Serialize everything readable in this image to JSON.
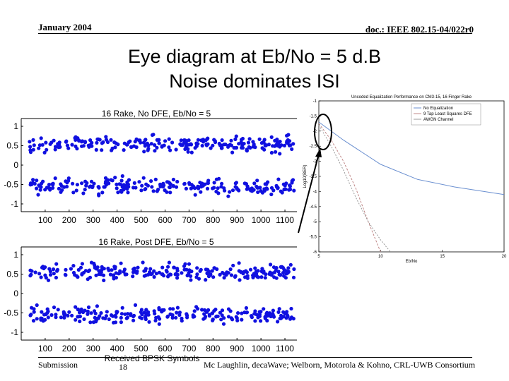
{
  "header": {
    "date": "January 2004",
    "doc": "doc.: IEEE 802.15-04/022r0"
  },
  "title": {
    "line1": "Eye diagram at Eb/No = 5 d.B",
    "line2": "Noise dominates ISI"
  },
  "footer": {
    "submission": "Submission",
    "page": "18",
    "authors": "Mc Laughlin, decaWave; Welborn, Motorola  & Kohno, CRL-UWB Consortium"
  },
  "colors": {
    "scatter": "#1010e0",
    "arrow": "#000000"
  },
  "chart_data": [
    {
      "type": "scatter",
      "title": "16 Rake, No DFE, Eb/No = 5",
      "xlabel": "",
      "ylabel": "",
      "xlim": [
        0,
        1150
      ],
      "ylim": [
        -1.2,
        1.2
      ],
      "xticks": [
        100,
        200,
        300,
        400,
        500,
        600,
        700,
        800,
        900,
        1000,
        1100
      ],
      "yticks": [
        1,
        0.5,
        0,
        -0.5,
        -1
      ],
      "clusters": [
        0.55,
        -0.55
      ],
      "spread": 0.2,
      "grid": false
    },
    {
      "type": "scatter",
      "title": "16 Rake, Post DFE, Eb/No = 5",
      "xlabel": "Received BPSK Symbols",
      "ylabel": "",
      "xlim": [
        0,
        1150
      ],
      "ylim": [
        -1.2,
        1.2
      ],
      "xticks": [
        100,
        200,
        300,
        400,
        500,
        600,
        700,
        800,
        900,
        1000,
        1100
      ],
      "yticks": [
        1,
        0.5,
        0,
        -0.5,
        -1
      ],
      "clusters": [
        0.55,
        -0.55
      ],
      "spread": 0.2,
      "grid": false
    },
    {
      "type": "line",
      "title": "Uncoded Equalization Performance on CM3-15, 16 Finger Rake",
      "xlabel": "Eb/No",
      "ylabel": "Log10(BER)",
      "xlim": [
        5,
        20
      ],
      "ylim": [
        -6,
        -1
      ],
      "xticks": [
        5,
        10,
        15,
        20
      ],
      "yticks": [
        -1,
        -1.5,
        -2,
        -2.5,
        -3,
        -3.5,
        -4,
        -4.5,
        -5,
        -5.5,
        -6
      ],
      "legend_position": "top-right",
      "series": [
        {
          "name": "No Equalization",
          "x": [
            5,
            7,
            10,
            13,
            16,
            20
          ],
          "y": [
            -1.7,
            -2.3,
            -3.1,
            -3.6,
            -3.85,
            -4.1
          ],
          "color": "#6a8fd0"
        },
        {
          "name": "9 Tap Least Squares DFE",
          "x": [
            5,
            6,
            7,
            8,
            9,
            10
          ],
          "y": [
            -1.75,
            -2.3,
            -3.0,
            -3.9,
            -5.0,
            -6.0
          ],
          "color": "#c08888"
        },
        {
          "name": "AWGN Channel",
          "x": [
            5,
            6,
            7,
            8,
            9,
            10,
            10.8
          ],
          "y": [
            -1.8,
            -2.5,
            -3.3,
            -4.2,
            -5.0,
            -5.6,
            -6.0
          ],
          "color": "#999999"
        }
      ]
    }
  ]
}
